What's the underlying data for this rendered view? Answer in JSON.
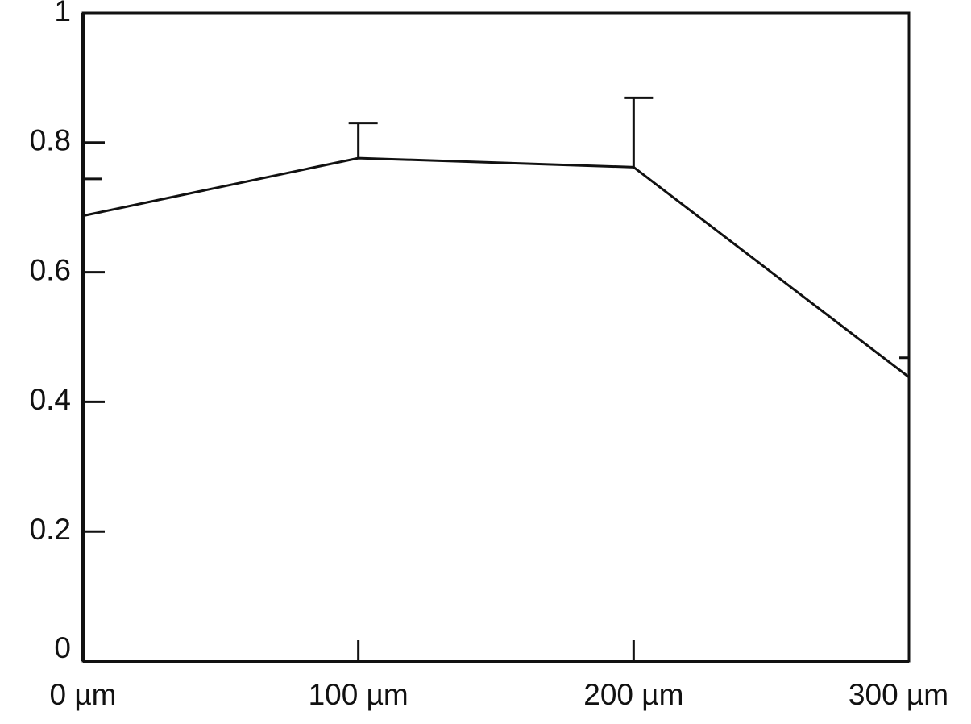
{
  "chart_data": {
    "type": "line",
    "x": [
      0,
      100,
      200,
      300
    ],
    "series": [
      {
        "color": "#111111",
        "values": [
          0.687,
          0.776,
          0.762,
          0.438
        ],
        "errors": [
          0.057,
          0.054,
          0.107,
          0.03
        ]
      }
    ],
    "xlim": [
      0,
      300
    ],
    "xticks": [
      {
        "value": 0,
        "label": "0 µm"
      },
      {
        "value": 100,
        "label": "100 µm"
      },
      {
        "value": 200,
        "label": "200 µm"
      },
      {
        "value": 300,
        "label": "300 µm"
      }
    ],
    "ylim": [
      0,
      1
    ],
    "yticks": [
      0,
      0.2,
      0.4,
      0.6,
      0.8,
      1
    ]
  }
}
